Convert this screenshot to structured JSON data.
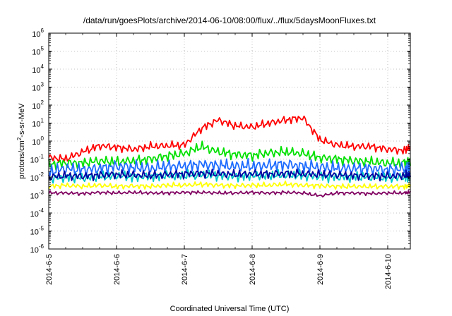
{
  "chart_data": {
    "type": "line",
    "title": "/data/run/goesPlots/archive/2014-06-10/08:00/flux/../flux/5daysMoonFluxes.txt",
    "xlabel": "Coordinated Universal Time (UTC)",
    "ylabel": "protons/cm²-s-sr-MeV",
    "ylabel_parts": {
      "before": "protons/cm",
      "sup": "2",
      "after": "-s-sr-MeV"
    },
    "y_scale": "log",
    "ylim": [
      1e-06,
      1000000.0
    ],
    "y_ticks": [
      {
        "base": "10",
        "exp": "-6"
      },
      {
        "base": "10",
        "exp": "-5"
      },
      {
        "base": "10",
        "exp": "-4"
      },
      {
        "base": "10",
        "exp": "-3"
      },
      {
        "base": "10",
        "exp": "-2"
      },
      {
        "base": "10",
        "exp": "-1"
      },
      {
        "base": "10",
        "exp": "0"
      },
      {
        "base": "10",
        "exp": "1"
      },
      {
        "base": "10",
        "exp": "2"
      },
      {
        "base": "10",
        "exp": "3"
      },
      {
        "base": "10",
        "exp": "4"
      },
      {
        "base": "10",
        "exp": "5"
      },
      {
        "base": "10",
        "exp": "6"
      }
    ],
    "xlim": [
      "2014-06-05 00:00",
      "2014-06-10 08:00"
    ],
    "x_ticks": [
      "2014-6-5",
      "2014-6-6",
      "2014-6-7",
      "2014-6-8",
      "2014-6-9",
      "2014-6-10"
    ],
    "grid": true,
    "x": [
      "2014-06-05 00:00",
      "2014-06-05 06:00",
      "2014-06-05 12:00",
      "2014-06-05 18:00",
      "2014-06-06 00:00",
      "2014-06-06 06:00",
      "2014-06-06 12:00",
      "2014-06-06 18:00",
      "2014-06-07 00:00",
      "2014-06-07 06:00",
      "2014-06-07 12:00",
      "2014-06-07 18:00",
      "2014-06-08 00:00",
      "2014-06-08 06:00",
      "2014-06-08 12:00",
      "2014-06-08 18:00",
      "2014-06-09 00:00",
      "2014-06-09 06:00",
      "2014-06-09 12:00",
      "2014-06-09 18:00",
      "2014-06-10 00:00",
      "2014-06-10 06:00",
      "2014-06-10 08:00"
    ],
    "series": [
      {
        "color": "#ff0000",
        "values": [
          0.12,
          0.1,
          0.25,
          0.55,
          0.45,
          0.35,
          0.5,
          0.55,
          0.6,
          5,
          15,
          7,
          6,
          10,
          15,
          20,
          1.2,
          0.6,
          0.5,
          0.5,
          0.35,
          0.3,
          0.45
        ]
      },
      {
        "color": "#00e000",
        "values": [
          0.05,
          0.06,
          0.06,
          0.08,
          0.07,
          0.08,
          0.1,
          0.15,
          0.2,
          0.5,
          0.25,
          0.18,
          0.16,
          0.22,
          0.25,
          0.2,
          0.12,
          0.1,
          0.08,
          0.07,
          0.06,
          0.06,
          0.08
        ]
      },
      {
        "color": "#1e6cff",
        "values": [
          0.02,
          0.03,
          0.025,
          0.03,
          0.04,
          0.035,
          0.03,
          0.04,
          0.04,
          0.05,
          0.045,
          0.04,
          0.04,
          0.045,
          0.05,
          0.04,
          0.035,
          0.03,
          0.03,
          0.03,
          0.025,
          0.03,
          0.035
        ]
      },
      {
        "color": "#00c8c8",
        "values": [
          0.008,
          0.01,
          0.009,
          0.01,
          0.012,
          0.01,
          0.011,
          0.012,
          0.012,
          0.013,
          0.012,
          0.011,
          0.012,
          0.012,
          0.013,
          0.012,
          0.011,
          0.01,
          0.01,
          0.01,
          0.009,
          0.01,
          0.011
        ]
      },
      {
        "color": "#0000a0",
        "values": [
          0.01,
          0.012,
          0.011,
          0.013,
          0.014,
          0.013,
          0.012,
          0.014,
          0.015,
          0.016,
          0.015,
          0.014,
          0.015,
          0.015,
          0.016,
          0.015,
          0.014,
          0.013,
          0.012,
          0.012,
          0.011,
          0.012,
          0.013
        ]
      },
      {
        "color": "#ffff00",
        "values": [
          0.003,
          0.0035,
          0.003,
          0.0035,
          0.003,
          0.0032,
          0.003,
          0.0035,
          0.0035,
          0.004,
          0.0035,
          0.0033,
          0.0035,
          0.0035,
          0.004,
          0.0035,
          0.0033,
          0.003,
          0.003,
          0.003,
          0.003,
          0.003,
          0.0035
        ]
      },
      {
        "color": "#800060",
        "values": [
          0.0013,
          0.0013,
          0.0012,
          0.0014,
          0.0013,
          0.0014,
          0.0013,
          0.0013,
          0.0014,
          0.0014,
          0.0013,
          0.0013,
          0.0014,
          0.0013,
          0.0014,
          0.0013,
          0.0009,
          0.0013,
          0.0013,
          0.0012,
          0.0013,
          0.0013,
          0.0014
        ]
      }
    ]
  }
}
